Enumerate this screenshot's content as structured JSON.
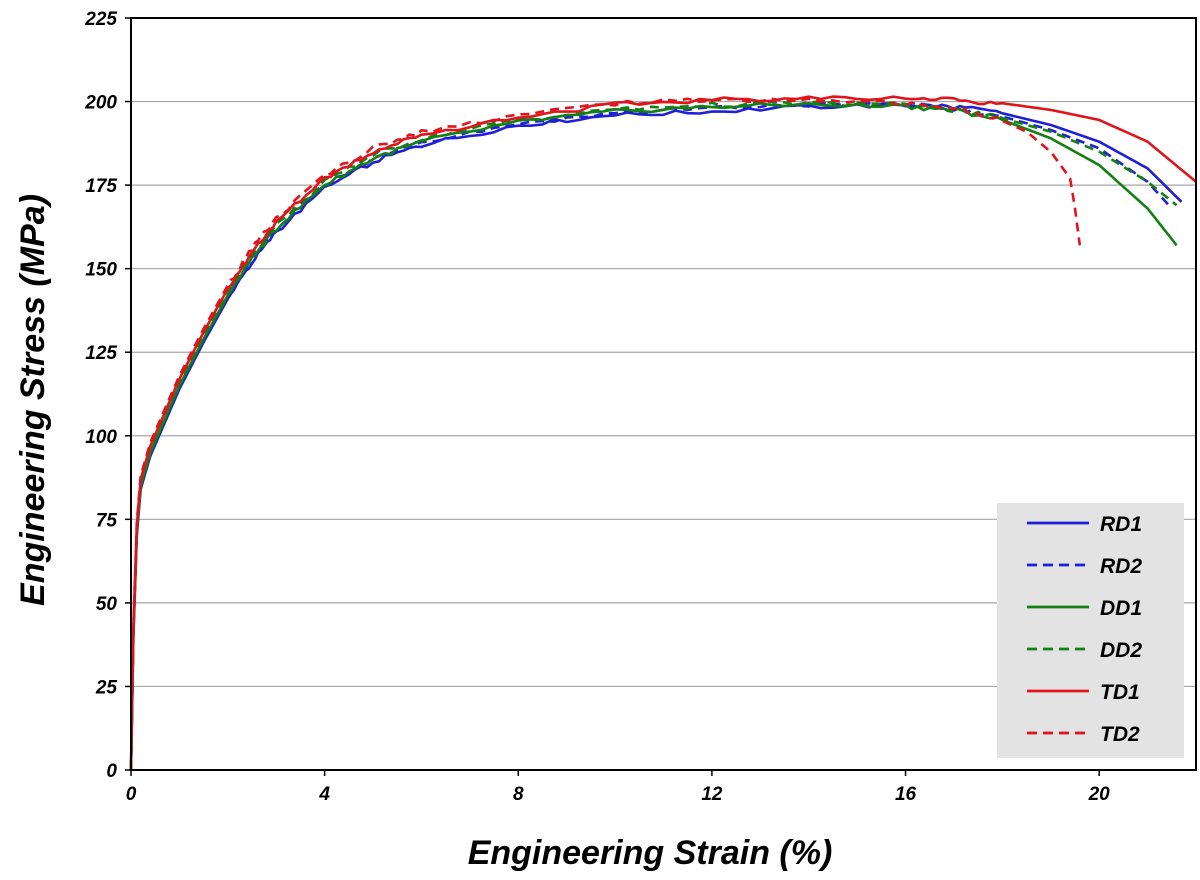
{
  "chart_data": {
    "type": "line",
    "xlabel": "Engineering Strain (%)",
    "ylabel": "Engineering Stress (MPa)",
    "xlim": [
      0,
      22
    ],
    "ylim": [
      0,
      225
    ],
    "xticks": [
      "0",
      "4",
      "8",
      "12",
      "16",
      "20"
    ],
    "xtick_values": [
      0,
      4,
      8,
      12,
      16,
      20
    ],
    "yticks": [
      "0",
      "25",
      "50",
      "75",
      "100",
      "125",
      "150",
      "175",
      "200",
      "225"
    ],
    "ytick_values": [
      0,
      25,
      50,
      75,
      100,
      125,
      150,
      175,
      200,
      225
    ],
    "grid": "horizontal",
    "legend_position": "bottom-right",
    "series": [
      {
        "name": "RD1",
        "color": "#1f1fd6",
        "dash": "solid",
        "x": [
          0,
          0.05,
          0.12,
          0.2,
          0.4,
          0.7,
          1.0,
          1.5,
          2.0,
          2.5,
          3.0,
          4.0,
          5.0,
          6.0,
          8.0,
          10.0,
          12.0,
          14.0,
          16.0,
          17.0,
          18.0,
          19.0,
          20.0,
          21.0,
          21.7
        ],
        "y": [
          0,
          40,
          70,
          84,
          94,
          104,
          114,
          128,
          141,
          152,
          161,
          174,
          182,
          187,
          193,
          196,
          197,
          198.5,
          199,
          198.5,
          196.5,
          193,
          188,
          180,
          170
        ]
      },
      {
        "name": "RD2",
        "color": "#1f1fd6",
        "dash": "dashed",
        "x": [
          0,
          0.05,
          0.12,
          0.2,
          0.4,
          0.7,
          1.0,
          1.5,
          2.0,
          2.5,
          3.0,
          4.0,
          5.0,
          6.0,
          8.0,
          10.0,
          12.0,
          14.0,
          16.0,
          17.0,
          18.0,
          19.0,
          20.0,
          21.0,
          21.5
        ],
        "y": [
          0,
          41,
          71,
          85,
          95,
          105,
          115,
          129,
          142,
          153,
          162,
          175,
          183,
          188,
          193.5,
          196.5,
          198,
          199,
          199,
          198,
          195.5,
          191.5,
          186,
          176,
          168
        ]
      },
      {
        "name": "DD1",
        "color": "#138013",
        "dash": "solid",
        "x": [
          0,
          0.05,
          0.12,
          0.2,
          0.4,
          0.7,
          1.0,
          1.5,
          2.0,
          2.5,
          3.0,
          4.0,
          5.0,
          6.0,
          8.0,
          10.0,
          12.0,
          14.0,
          16.0,
          17.0,
          18.0,
          19.0,
          20.0,
          21.0,
          21.6
        ],
        "y": [
          0,
          41,
          71,
          85,
          95,
          105,
          115,
          129,
          142,
          153,
          162,
          175,
          183,
          188,
          194,
          197,
          198.5,
          199,
          198.5,
          197.5,
          194.5,
          189,
          181,
          168,
          157
        ]
      },
      {
        "name": "DD2",
        "color": "#138013",
        "dash": "dashed",
        "x": [
          0,
          0.05,
          0.12,
          0.2,
          0.4,
          0.7,
          1.0,
          1.5,
          2.0,
          2.5,
          3.0,
          4.0,
          5.0,
          6.0,
          8.0,
          10.0,
          12.0,
          14.0,
          16.0,
          17.0,
          18.0,
          19.0,
          20.0,
          21.0,
          21.6
        ],
        "y": [
          0,
          42,
          72,
          86,
          96,
          106,
          116,
          130,
          143,
          154,
          163,
          176,
          184,
          189,
          194.5,
          197.5,
          199,
          199.5,
          199,
          197.5,
          195,
          191,
          185,
          176,
          169
        ]
      },
      {
        "name": "TD1",
        "color": "#e0141c",
        "dash": "solid",
        "x": [
          0,
          0.05,
          0.12,
          0.2,
          0.4,
          0.7,
          1.0,
          1.5,
          2.0,
          2.5,
          3.0,
          4.0,
          5.0,
          6.0,
          8.0,
          10.0,
          12.0,
          14.0,
          16.0,
          17.0,
          18.0,
          19.0,
          20.0,
          21.0,
          22.0
        ],
        "y": [
          0,
          43,
          73,
          87,
          97,
          107,
          117,
          131,
          144,
          155,
          164,
          177,
          185,
          190,
          195.5,
          199,
          200.5,
          201,
          201,
          200.5,
          199.5,
          197.5,
          194.5,
          188,
          176
        ]
      },
      {
        "name": "TD2",
        "color": "#e0141c",
        "dash": "dashed",
        "x": [
          0,
          0.05,
          0.12,
          0.2,
          0.4,
          0.7,
          1.0,
          1.5,
          2.0,
          2.5,
          3.0,
          4.0,
          5.0,
          6.0,
          8.0,
          10.0,
          12.0,
          14.0,
          16.0,
          17.0,
          17.8,
          18.5,
          19.0,
          19.4,
          19.5,
          19.6
        ],
        "y": [
          0,
          43,
          74,
          88,
          98,
          108,
          118,
          132,
          145,
          156,
          165,
          178,
          186,
          191,
          196,
          199.5,
          200.5,
          200.5,
          199.5,
          198,
          195.5,
          191,
          185,
          177,
          168,
          157
        ]
      }
    ]
  }
}
